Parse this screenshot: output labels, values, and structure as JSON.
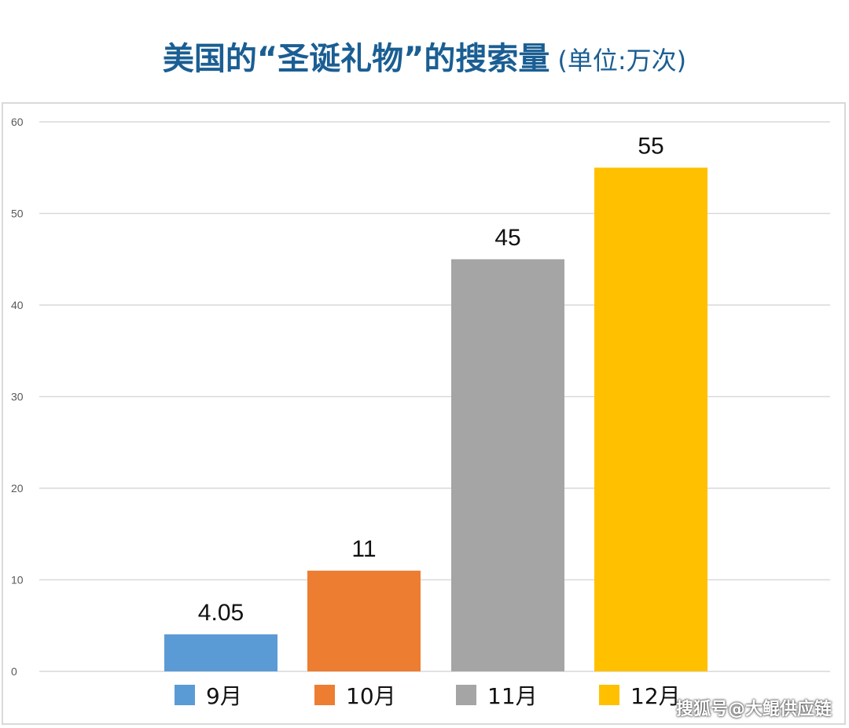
{
  "title": "美国的“圣诞礼物”的搜索量",
  "unit": "(单位:万次)",
  "watermark": "搜狐号@大鲲供应链",
  "chart_data": {
    "type": "bar",
    "categories": [
      "9月",
      "10月",
      "11月",
      "12月"
    ],
    "values": [
      4.05,
      11,
      45,
      55
    ],
    "value_labels": [
      "4.05",
      "11",
      "45",
      "55"
    ],
    "colors": [
      "#5b9bd5",
      "#ed7d31",
      "#a5a5a5",
      "#ffc000"
    ],
    "ylim": [
      0,
      60
    ],
    "yticks": [
      "0",
      "10",
      "20",
      "30",
      "40",
      "50",
      "60"
    ],
    "grid": true,
    "legend": "bottom"
  }
}
